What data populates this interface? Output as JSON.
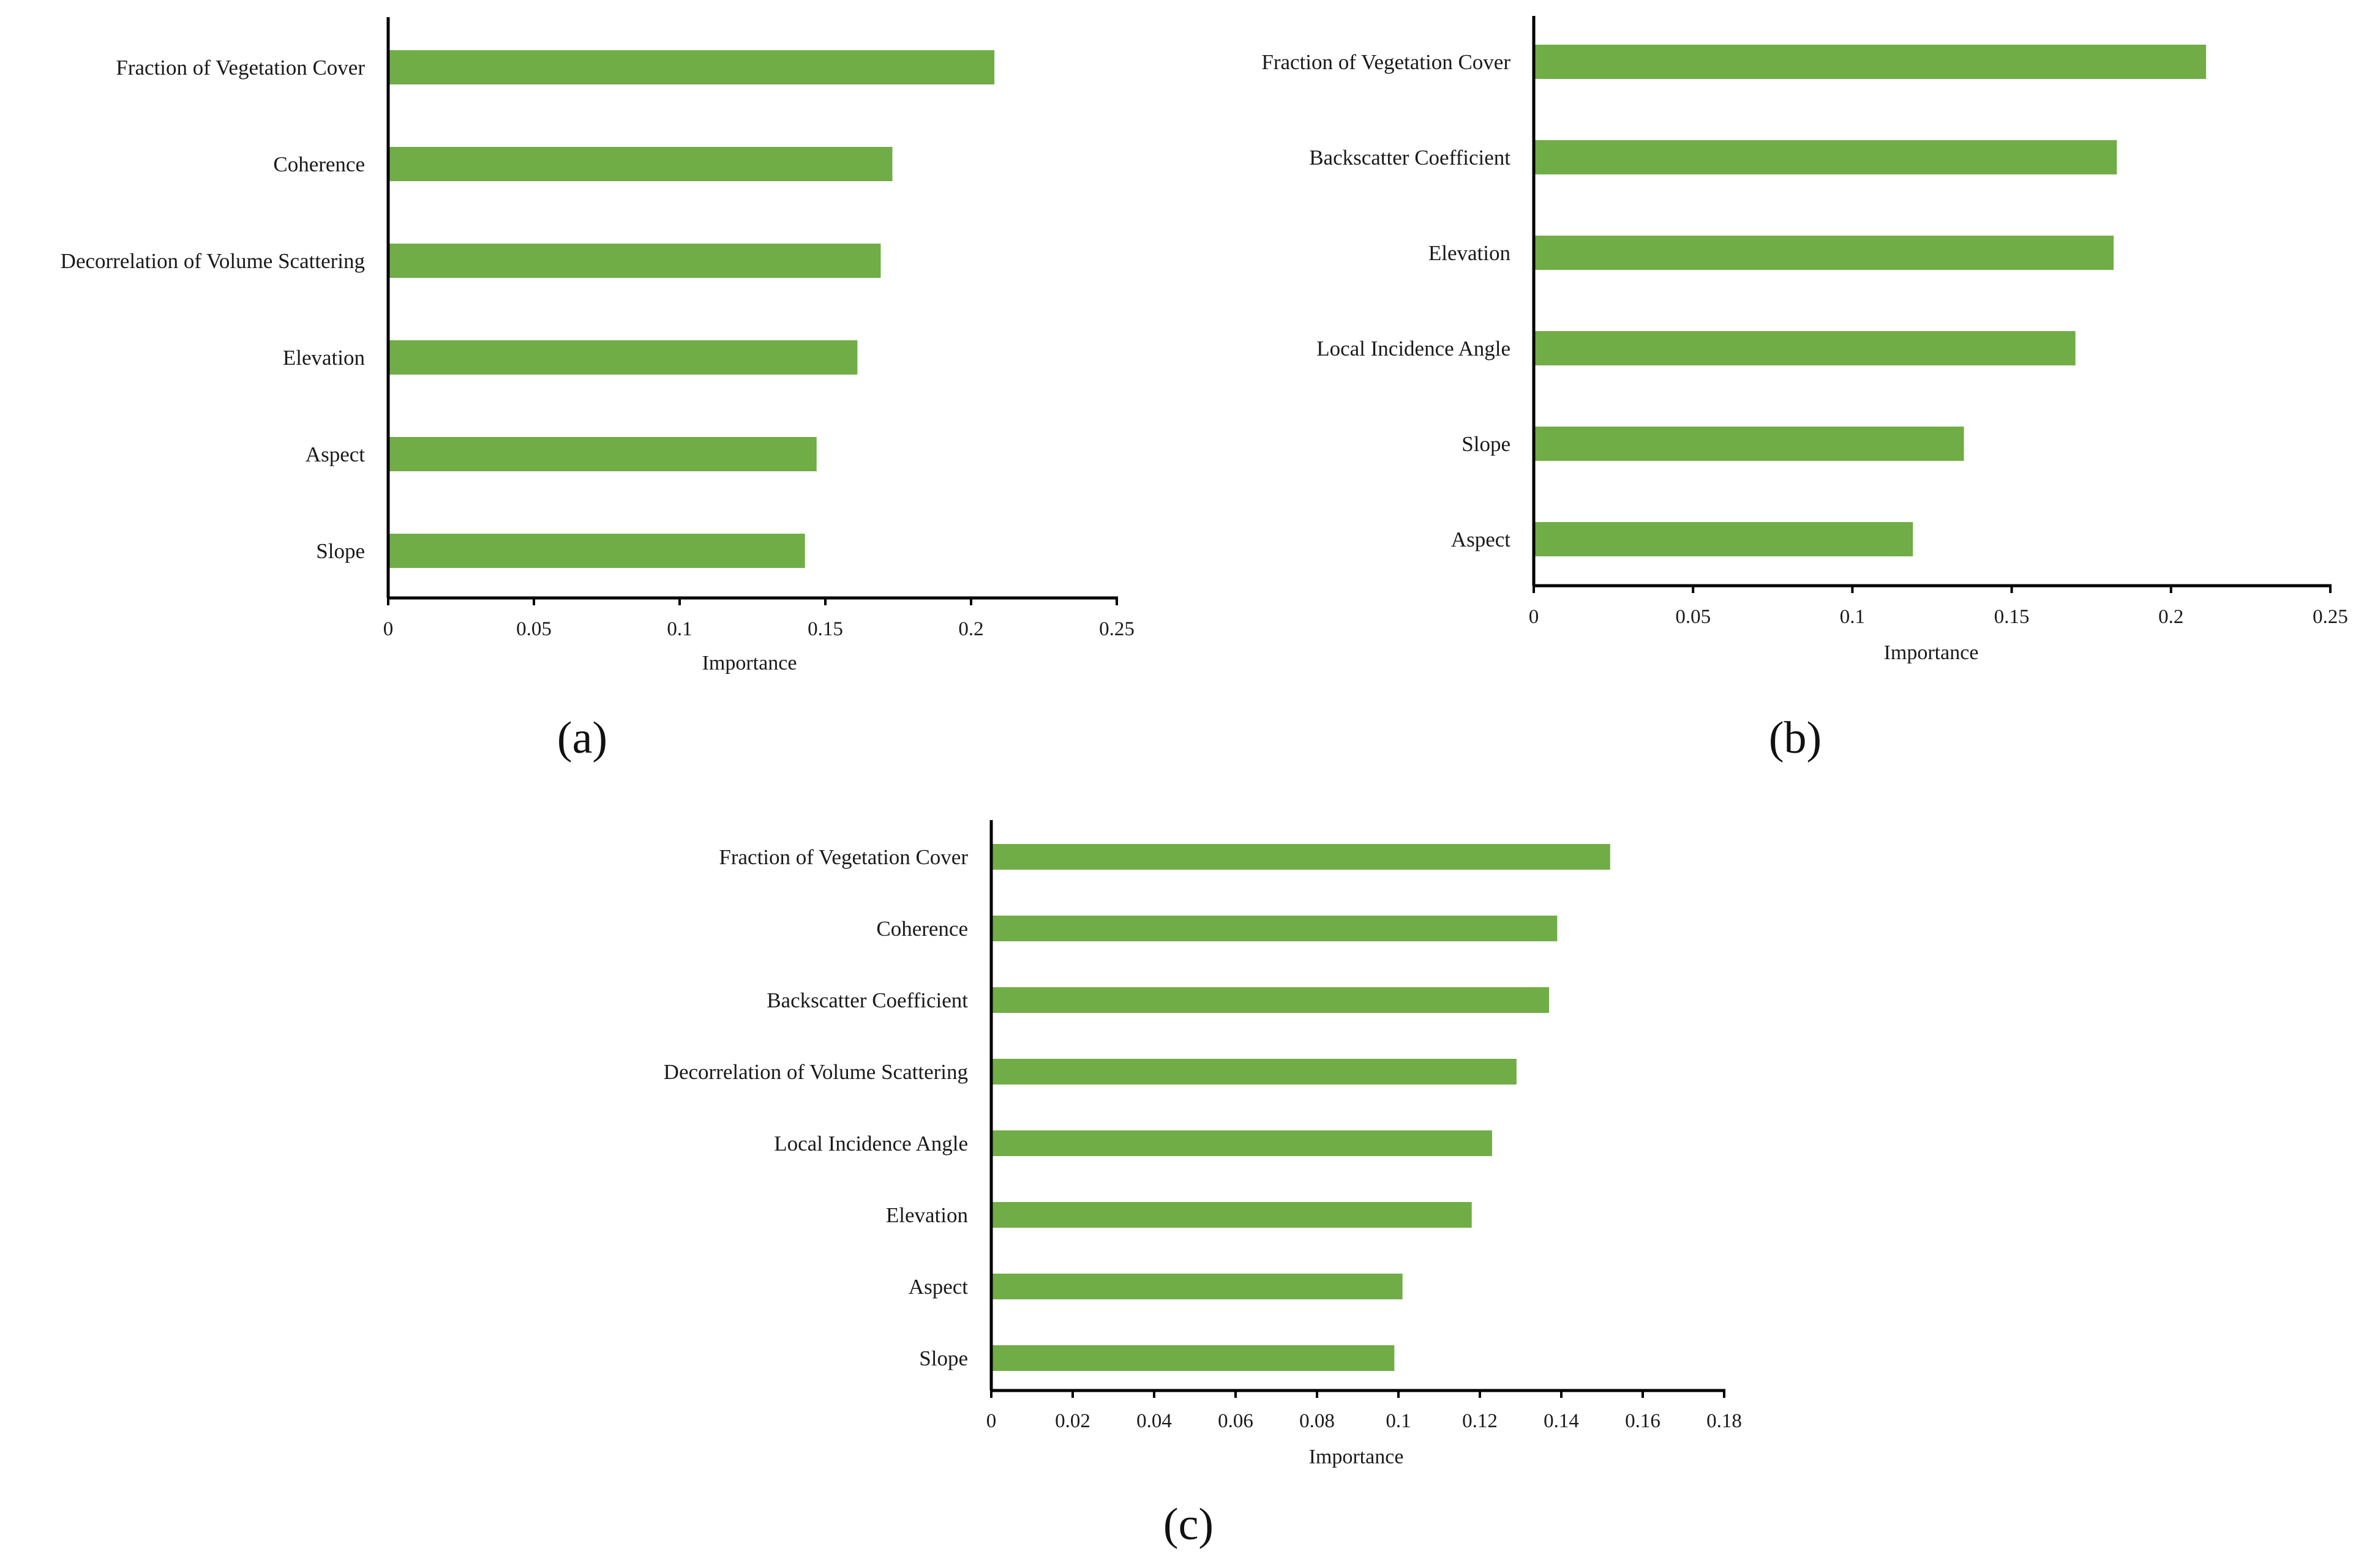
{
  "colors": {
    "bar": "#70ad47",
    "axis": "#000000",
    "text": "#1a1a1a"
  },
  "chart_data": [
    {
      "type": "bar",
      "orientation": "horizontal",
      "panel": "(a)",
      "xlabel": "Importance",
      "xlim": [
        0,
        0.25
      ],
      "ticks": [
        "0",
        "0.05",
        "0.1",
        "0.15",
        "0.2",
        "0.25"
      ],
      "tick_values": [
        0,
        0.05,
        0.1,
        0.15,
        0.2,
        0.25
      ],
      "categories": [
        "Fraction of Vegetation Cover",
        "Coherence",
        "Decorrelation of Volume Scattering",
        "Elevation",
        "Aspect",
        "Slope"
      ],
      "values": [
        0.208,
        0.173,
        0.169,
        0.161,
        0.147,
        0.143
      ]
    },
    {
      "type": "bar",
      "orientation": "horizontal",
      "panel": "(b)",
      "xlabel": "Importance",
      "xlim": [
        0,
        0.25
      ],
      "ticks": [
        "0",
        "0.05",
        "0.1",
        "0.15",
        "0.2",
        "0.25"
      ],
      "tick_values": [
        0,
        0.05,
        0.1,
        0.15,
        0.2,
        0.25
      ],
      "categories": [
        "Fraction of Vegetation Cover",
        "Backscatter Coefficient",
        "Elevation",
        "Local Incidence Angle",
        "Slope",
        "Aspect"
      ],
      "values": [
        0.211,
        0.183,
        0.182,
        0.17,
        0.135,
        0.119
      ]
    },
    {
      "type": "bar",
      "orientation": "horizontal",
      "panel": "(c)",
      "xlabel": "Importance",
      "xlim": [
        0,
        0.18
      ],
      "ticks": [
        "0",
        "0.02",
        "0.04",
        "0.06",
        "0.08",
        "0.1",
        "0.12",
        "0.14",
        "0.16",
        "0.18"
      ],
      "tick_values": [
        0,
        0.02,
        0.04,
        0.06,
        0.08,
        0.1,
        0.12,
        0.14,
        0.16,
        0.18
      ],
      "categories": [
        "Fraction of Vegetation Cover",
        "Coherence",
        "Backscatter Coefficient",
        "Decorrelation of Volume Scattering",
        "Local Incidence Angle",
        "Elevation",
        "Aspect",
        "Slope"
      ],
      "values": [
        0.152,
        0.139,
        0.137,
        0.129,
        0.123,
        0.118,
        0.101,
        0.099
      ]
    }
  ]
}
